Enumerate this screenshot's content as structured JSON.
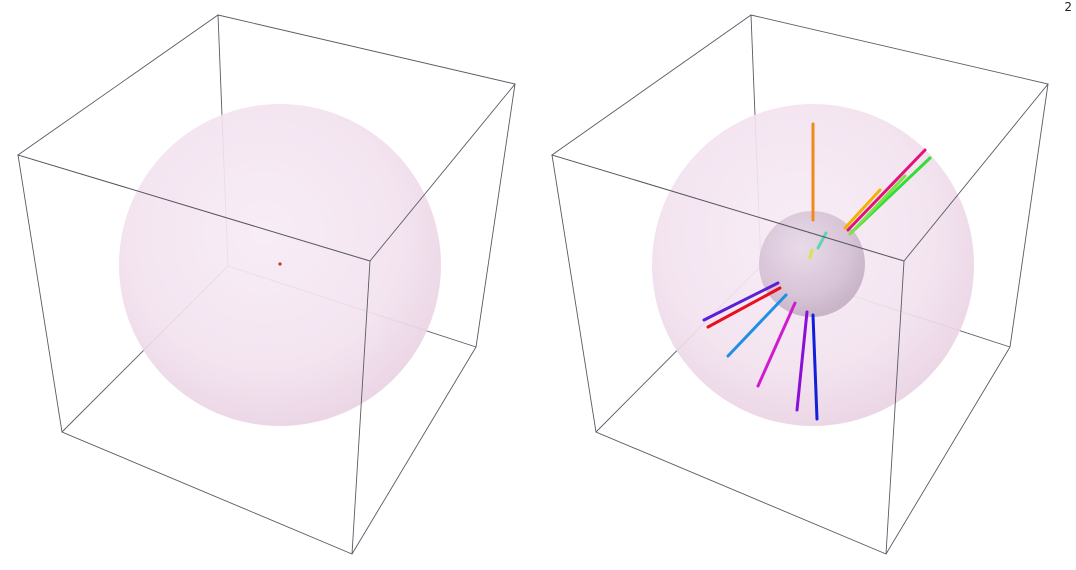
{
  "page_number": "2",
  "colors": {
    "box_edge": "#5a5a66",
    "outer_sphere": "#efd9ea",
    "inner_sphere": "#c9b4c9",
    "origin_dot": "#c0392b"
  },
  "left_panel": {
    "description_items": [
      "bounding-box",
      "outer-sphere",
      "origin-point"
    ]
  },
  "right_panel": {
    "ray_colors": [
      "#f08a1c",
      "#e0137a",
      "#33dd33",
      "#7ee04a",
      "#f5b100",
      "#5fd7b0",
      "#d7e54a",
      "#5a1fd6",
      "#e8101e",
      "#1f8fe5",
      "#d01cd0",
      "#8a10d8",
      "#1020d8"
    ]
  }
}
